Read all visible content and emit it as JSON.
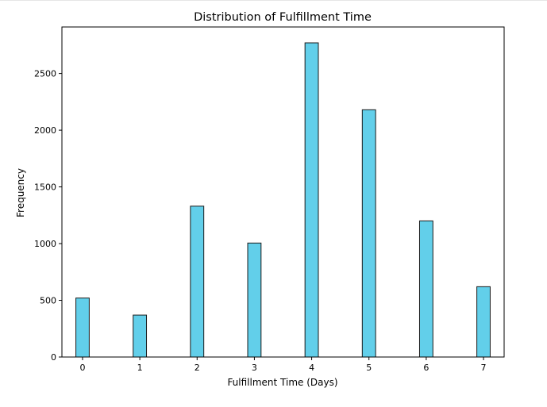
{
  "chart_data": {
    "type": "bar",
    "title": "Distribution of Fulfillment Time",
    "xlabel": "Fulfillment Time (Days)",
    "ylabel": "Frequency",
    "x": [
      0,
      1,
      2,
      3,
      4,
      5,
      6,
      7
    ],
    "values": [
      520,
      370,
      1330,
      1005,
      2770,
      2180,
      1200,
      620
    ],
    "xlim": [
      -0.36,
      7.36
    ],
    "ylim": [
      0,
      2910
    ],
    "xticks": [
      0,
      1,
      2,
      3,
      4,
      5,
      6,
      7
    ],
    "yticks": [
      0,
      500,
      1000,
      1500,
      2000,
      2500
    ],
    "bar_width_days": 0.233,
    "grid": false,
    "legend": "none",
    "colors": {
      "bar_fill": "#62cfea",
      "bar_edge": "#1a1a1a",
      "axes": "#000000"
    }
  }
}
